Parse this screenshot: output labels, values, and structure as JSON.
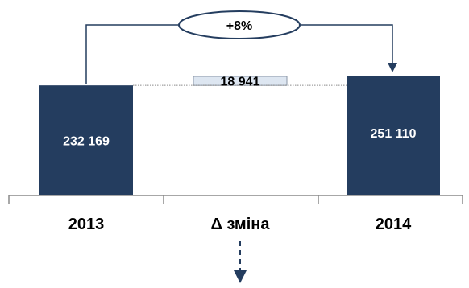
{
  "chart_data": {
    "type": "bar",
    "subtype": "waterfall",
    "categories": [
      "2013",
      "Δ зміна",
      "2014"
    ],
    "values": [
      232169,
      18941,
      251110
    ],
    "value_labels": [
      "232 169",
      "18 941",
      "251 110"
    ],
    "change_label": "+8%",
    "title": "",
    "xlabel": "",
    "ylabel": "",
    "colors": {
      "total_bar": "#243d5f",
      "delta_bar": "#dde6f1",
      "delta_border": "#8a96a6",
      "axis": "#8a8a8a",
      "connector": "#243d5f"
    }
  }
}
